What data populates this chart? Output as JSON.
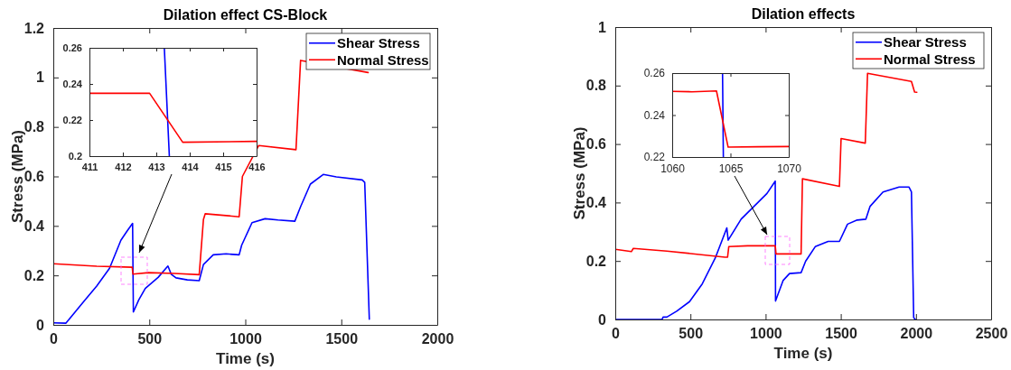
{
  "chart_data": [
    {
      "type": "line",
      "title": "Dilation effect CS-Block",
      "xlabel": "Time (s)",
      "ylabel": "Stress (MPa)",
      "xlim": [
        0,
        2000
      ],
      "ylim": [
        0,
        1.2
      ],
      "xticks": [
        0,
        500,
        1000,
        1500,
        2000
      ],
      "yticks": [
        0,
        0.2,
        0.4,
        0.6,
        0.8,
        1,
        1.2
      ],
      "legend": "top right",
      "grid": false,
      "series": [
        {
          "name": "Shear Stress",
          "color": "#0000ff",
          "x": [
            0,
            66,
            100,
            159,
            226,
            293,
            352,
            386,
            413,
            417,
            445,
            479,
            546,
            597,
            614,
            639,
            698,
            760,
            782,
            833,
            900,
            968,
            981,
            1035,
            1103,
            1170,
            1258,
            1288,
            1339,
            1406,
            1474,
            1609,
            1622,
            1646
          ],
          "values": [
            0.008,
            0.007,
            0.039,
            0.095,
            0.157,
            0.229,
            0.342,
            0.381,
            0.41,
            0.052,
            0.101,
            0.147,
            0.192,
            0.238,
            0.205,
            0.19,
            0.182,
            0.179,
            0.244,
            0.283,
            0.287,
            0.283,
            0.322,
            0.413,
            0.429,
            0.424,
            0.419,
            0.478,
            0.569,
            0.608,
            0.598,
            0.586,
            0.576,
            0.023
          ]
        },
        {
          "name": "Normal Stress",
          "color": "#ff0000",
          "x": [
            0,
            226,
            411,
            415,
            496,
            631,
            760,
            782,
            791,
            968,
            985,
            1070,
            1264,
            1288,
            1640
          ],
          "values": [
            0.247,
            0.237,
            0.233,
            0.205,
            0.211,
            0.208,
            0.203,
            0.426,
            0.449,
            0.437,
            0.6,
            0.725,
            0.708,
            1.069,
            1.02
          ]
        }
      ]
    },
    {
      "type": "line",
      "xlim": [
        411,
        416
      ],
      "ylim": [
        0.2,
        0.26
      ],
      "xticks": [
        411,
        412,
        413,
        414,
        415,
        416
      ],
      "yticks": [
        0.2,
        0.22,
        0.24,
        0.26
      ],
      "grid": false,
      "series": [
        {
          "color": "#0000ff",
          "x": [
            413.24,
            413.39
          ],
          "values": [
            0.26,
            0.2
          ]
        },
        {
          "color": "#ff0000",
          "x": [
            411,
            412.8,
            413.79,
            416
          ],
          "values": [
            0.2348,
            0.2348,
            0.2077,
            0.2082
          ]
        }
      ]
    },
    {
      "type": "line",
      "title": "Dilation effects",
      "xlabel": "Time (s)",
      "ylabel": "Stress (MPa)",
      "xlim": [
        0,
        2500
      ],
      "ylim": [
        0,
        1
      ],
      "xticks": [
        0,
        500,
        1000,
        1500,
        2000,
        2500
      ],
      "yticks": [
        0,
        0.2,
        0.4,
        0.6,
        0.8,
        1
      ],
      "legend": "top right",
      "grid": false,
      "series": [
        {
          "name": "Shear Stress",
          "color": "#0000ff",
          "x": [
            0,
            311,
            318,
            343,
            408,
            494,
            579,
            665,
            742,
            751,
            837,
            923,
            1009,
            1064,
            1066,
            1116,
            1159,
            1236,
            1266,
            1330,
            1416,
            1491,
            1545,
            1609,
            1667,
            1695,
            1781,
            1888,
            1953,
            1970,
            1985,
            1996
          ],
          "values": [
            0,
            0,
            0.008,
            0.008,
            0.028,
            0.061,
            0.122,
            0.21,
            0.313,
            0.271,
            0.343,
            0.387,
            0.431,
            0.473,
            0.063,
            0.133,
            0.157,
            0.16,
            0.199,
            0.249,
            0.267,
            0.267,
            0.326,
            0.34,
            0.343,
            0.387,
            0.436,
            0.453,
            0.453,
            0.436,
            0.006,
            0
          ]
        },
        {
          "name": "Normal Stress",
          "color": "#ff0000",
          "x": [
            0,
            107,
            120,
            343,
            730,
            747,
            755,
            880,
            1064,
            1069,
            1236,
            1245,
            1491,
            1502,
            1663,
            1678,
            1970,
            1991,
            2006
          ],
          "values": [
            0.24,
            0.232,
            0.243,
            0.234,
            0.213,
            0.213,
            0.249,
            0.252,
            0.252,
            0.224,
            0.224,
            0.481,
            0.455,
            0.619,
            0.603,
            0.842,
            0.814,
            0.778,
            0.777
          ]
        }
      ]
    },
    {
      "type": "line",
      "xlim": [
        1060,
        1070
      ],
      "ylim": [
        0.22,
        0.26
      ],
      "xticks": [
        1060,
        1065,
        1070
      ],
      "yticks": [
        0.22,
        0.24,
        0.26
      ],
      "grid": false,
      "series": [
        {
          "color": "#0000ff",
          "x": [
            1064.32,
            1064.39
          ],
          "values": [
            0.26,
            0.22
          ]
        },
        {
          "color": "#ff0000",
          "x": [
            1060,
            1061.7,
            1063.8,
            1064.8,
            1067.4,
            1070
          ],
          "values": [
            0.2513,
            0.2511,
            0.2515,
            0.2247,
            0.2249,
            0.225
          ]
        }
      ]
    }
  ]
}
